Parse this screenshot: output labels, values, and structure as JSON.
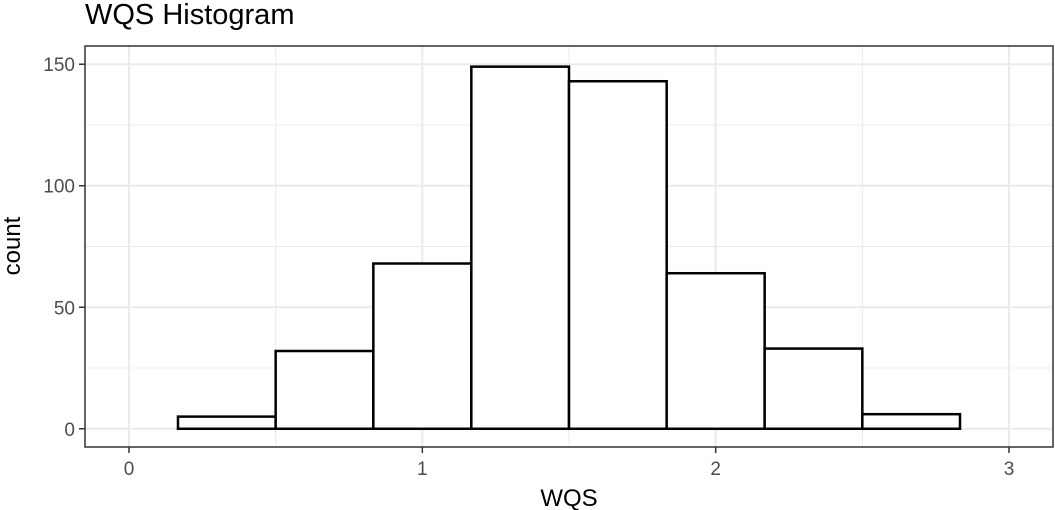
{
  "chart_data": {
    "type": "histogram",
    "title": "WQS Histogram",
    "xlabel": "WQS",
    "ylabel": "count",
    "xlim": [
      -0.15,
      3.15
    ],
    "ylim": [
      -7.5,
      157.5
    ],
    "x_ticks": [
      0,
      1,
      2,
      3
    ],
    "y_ticks": [
      0,
      50,
      100,
      150
    ],
    "x_tick_labels": [
      "0",
      "1",
      "2",
      "3"
    ],
    "y_tick_labels": [
      "0",
      "50",
      "100",
      "150"
    ],
    "grid": true,
    "bins": [
      {
        "x0": 0.167,
        "x1": 0.5,
        "count": 5
      },
      {
        "x0": 0.5,
        "x1": 0.833,
        "count": 32
      },
      {
        "x0": 0.833,
        "x1": 1.167,
        "count": 68
      },
      {
        "x0": 1.167,
        "x1": 1.5,
        "count": 149
      },
      {
        "x0": 1.5,
        "x1": 1.833,
        "count": 143
      },
      {
        "x0": 1.833,
        "x1": 2.167,
        "count": 64
      },
      {
        "x0": 2.167,
        "x1": 2.5,
        "count": 33
      },
      {
        "x0": 2.5,
        "x1": 2.833,
        "count": 6
      }
    ],
    "bar_fill": "#ffffff",
    "bar_stroke": "#000000",
    "grid_color": "#ebebeb",
    "panel_border_color": "#333333"
  }
}
